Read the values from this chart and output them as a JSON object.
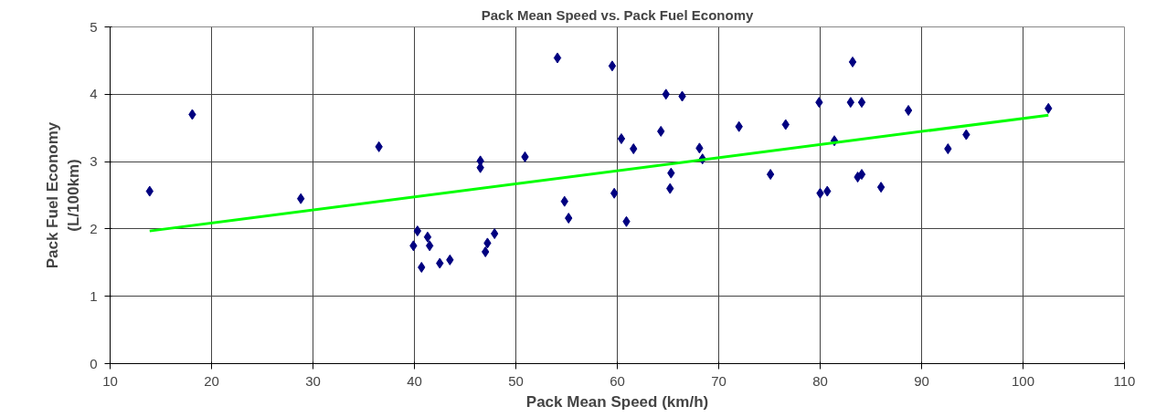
{
  "chart_data": {
    "type": "scatter",
    "title": "Pack Mean Speed vs. Pack Fuel Economy",
    "xlabel": "Pack Mean Speed (km/h)",
    "ylabel": "Pack Fuel Economy\n(L/100km)",
    "xlim": [
      10,
      110
    ],
    "xticks": [
      10,
      20,
      30,
      40,
      50,
      60,
      70,
      80,
      90,
      100,
      110
    ],
    "ylim": [
      0,
      5
    ],
    "yticks": [
      0,
      1,
      2,
      3,
      4,
      5
    ],
    "grid": true,
    "series": [
      {
        "marker": "diamond",
        "color": "#000080",
        "x": [
          13.9,
          18.1,
          28.8,
          36.5,
          40.3,
          39.9,
          41.3,
          41.5,
          40.7,
          42.5,
          43.5,
          47.0,
          47.2,
          47.9,
          46.5,
          46.5,
          50.9,
          54.1,
          54.8,
          55.2,
          59.5,
          59.7,
          60.4,
          60.9,
          61.6,
          64.3,
          64.8,
          66.4,
          65.3,
          65.2,
          68.1,
          68.4,
          72.0,
          75.1,
          76.6,
          79.9,
          80.0,
          80.7,
          81.4,
          83.2,
          83.0,
          84.1,
          83.7,
          84.1,
          86.0,
          88.7,
          92.6,
          94.4,
          102.5
        ],
        "values": [
          2.56,
          3.7,
          2.45,
          3.22,
          1.97,
          1.75,
          1.88,
          1.75,
          1.43,
          1.49,
          1.54,
          1.66,
          1.79,
          1.93,
          3.01,
          2.91,
          3.07,
          4.54,
          2.41,
          2.16,
          4.42,
          2.53,
          3.34,
          2.11,
          3.19,
          3.45,
          4.0,
          3.97,
          2.83,
          2.6,
          3.2,
          3.04,
          3.52,
          2.81,
          3.55,
          3.88,
          2.53,
          2.56,
          3.31,
          4.48,
          3.88,
          3.88,
          2.77,
          2.81,
          2.62,
          3.76,
          3.19,
          3.4,
          3.79
        ]
      },
      {
        "type": "line",
        "color": "#00ff00",
        "x": [
          13.9,
          102.5
        ],
        "values": [
          1.97,
          3.69
        ]
      }
    ]
  }
}
